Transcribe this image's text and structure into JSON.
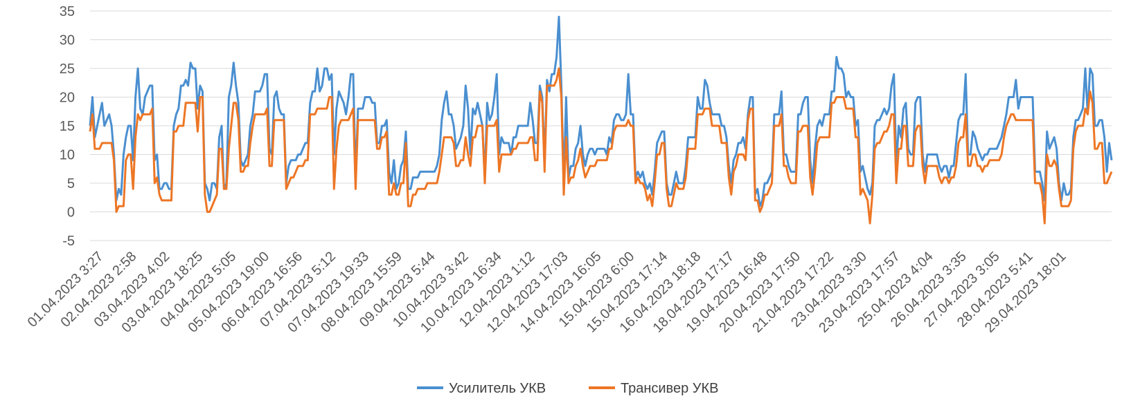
{
  "chart_data": {
    "type": "line",
    "title": "",
    "xlabel": "",
    "ylabel": "",
    "ylim": [
      -5,
      35
    ],
    "yticks": [
      -5,
      0,
      5,
      10,
      15,
      20,
      25,
      30,
      35
    ],
    "grid": true,
    "legend_position": "bottom",
    "x_tick_labels": [
      "01.04.2023 3:27",
      "02.04.2023 2:58",
      "03.04.2023 4:02",
      "03.04.2023 18:25",
      "04.04.2023 5:05",
      "05.04.2023 19:00",
      "06.04.2023 16:56",
      "07.04.2023 5:12",
      "07.04.2023 19:33",
      "08.04.2023 15:59",
      "09.04.2023 5:44",
      "10.04.2023 3:42",
      "10.04.2023 16:34",
      "12.04.2023 1:12",
      "12.04.2023 17:03",
      "14.04.2023 16:05",
      "15.04.2023 6:00",
      "15.04.2023 17:14",
      "16.04.2023 18:18",
      "18.04.2023 17:17",
      "19.04.2023 16:48",
      "20.04.2023 17:50",
      "21.04.2023 17:22",
      "23.04.2023 3:30",
      "23.04.2023 17:57",
      "25.04.2023 4:04",
      "26.04.2023 3:35",
      "27.04.2023 3:05",
      "28.04.2023 5:41",
      "29.04.2023 18:01"
    ],
    "series": [
      {
        "name": "Усилитель УКВ",
        "color": "#4a8fd0",
        "values": [
          15,
          20,
          13,
          15,
          17,
          19,
          15,
          16,
          17,
          15,
          10,
          2,
          4,
          3,
          10,
          13,
          15,
          15,
          9,
          20,
          25,
          18,
          17,
          20,
          21,
          22,
          22,
          9,
          10,
          4,
          4,
          5,
          5,
          4,
          4,
          15,
          17,
          18,
          22,
          22,
          23,
          22,
          26,
          25,
          25,
          18,
          22,
          21,
          5,
          4,
          2,
          5,
          5,
          4,
          13,
          15,
          4,
          5,
          20,
          22,
          26,
          22,
          19,
          9,
          8,
          9,
          10,
          15,
          17,
          21,
          21,
          21,
          22,
          24,
          24,
          11,
          10,
          20,
          21,
          18,
          17,
          17,
          5,
          8,
          9,
          9,
          9,
          10,
          10,
          11,
          12,
          12,
          19,
          21,
          21,
          25,
          21,
          22,
          25,
          25,
          23,
          24,
          10,
          18,
          21,
          20,
          19,
          17,
          20,
          24,
          24,
          6,
          18,
          18,
          18,
          20,
          20,
          20,
          19,
          19,
          12,
          12,
          15,
          15,
          16,
          7,
          5,
          9,
          4,
          5,
          8,
          9,
          14,
          4,
          4,
          6,
          6,
          6,
          7,
          7,
          7,
          7,
          7,
          7,
          7,
          8,
          10,
          16,
          19,
          21,
          17,
          17,
          15,
          11,
          12,
          13,
          15,
          22,
          18,
          10,
          18,
          17,
          19,
          17,
          15,
          6,
          19,
          16,
          17,
          20,
          24,
          10,
          13,
          12,
          12,
          12,
          10,
          13,
          13,
          15,
          15,
          15,
          15,
          15,
          19,
          16,
          12,
          12,
          22,
          20,
          9,
          23,
          21,
          24,
          24,
          27,
          34,
          22,
          5,
          20,
          6,
          8,
          8,
          11,
          12,
          15,
          10,
          8,
          10,
          11,
          11,
          10,
          11,
          11,
          11,
          11,
          10,
          13,
          12,
          16,
          17,
          17,
          16,
          16,
          17,
          24,
          17,
          17,
          6,
          7,
          6,
          7,
          5,
          4,
          5,
          3,
          7,
          12,
          13,
          14,
          14,
          5,
          3,
          3,
          5,
          7,
          5,
          5,
          5,
          8,
          13,
          13,
          13,
          13,
          20,
          18,
          18,
          23,
          22,
          19,
          17,
          17,
          17,
          17,
          15,
          15,
          13,
          8,
          5,
          9,
          10,
          12,
          12,
          13,
          11,
          17,
          20,
          20,
          3,
          4,
          1,
          2,
          5,
          5,
          6,
          7,
          17,
          17,
          17,
          21,
          10,
          10,
          8,
          7,
          7,
          7,
          17,
          17,
          19,
          20,
          20,
          9,
          5,
          11,
          15,
          16,
          15,
          17,
          17,
          17,
          21,
          21,
          27,
          25,
          25,
          24,
          20,
          21,
          20,
          20,
          15,
          16,
          7,
          8,
          6,
          4,
          3,
          5,
          15,
          16,
          16,
          17,
          18,
          17,
          18,
          22,
          24,
          8,
          15,
          13,
          18,
          19,
          11,
          10,
          10,
          19,
          20,
          20,
          10,
          7,
          10,
          10,
          10,
          10,
          10,
          8,
          7,
          8,
          8,
          6,
          8,
          8,
          12,
          16,
          17,
          17,
          24,
          10,
          10,
          14,
          13,
          11,
          10,
          9,
          10,
          10,
          11,
          11,
          11,
          11,
          12,
          13,
          15,
          17,
          20,
          20,
          20,
          23,
          18,
          20,
          20,
          20,
          20,
          20,
          20,
          7,
          7,
          7,
          5,
          2,
          14,
          11,
          12,
          13,
          11,
          5,
          2,
          5,
          3,
          3,
          4,
          13,
          16,
          16,
          17,
          18,
          25,
          17,
          25,
          24,
          15,
          15,
          16,
          16,
          13,
          7,
          12,
          9
        ]
      },
      {
        "name": "Трансивер УКВ",
        "color": "#ed7625",
        "values": [
          14,
          17,
          11,
          11,
          11,
          12,
          12,
          12,
          12,
          12,
          9,
          0,
          1,
          1,
          1,
          9,
          10,
          10,
          4,
          13,
          17,
          16,
          17,
          17,
          17,
          17,
          18,
          5,
          6,
          3,
          2,
          2,
          2,
          2,
          2,
          14,
          14,
          15,
          15,
          15,
          19,
          19,
          19,
          19,
          19,
          14,
          20,
          20,
          3,
          0,
          0,
          1,
          2,
          3,
          11,
          11,
          4,
          4,
          11,
          15,
          19,
          19,
          16,
          7,
          7,
          8,
          8,
          12,
          15,
          17,
          17,
          17,
          17,
          17,
          18,
          8,
          8,
          16,
          16,
          16,
          16,
          16,
          4,
          5,
          6,
          6,
          7,
          8,
          8,
          8,
          9,
          9,
          17,
          17,
          17,
          18,
          18,
          18,
          18,
          18,
          20,
          20,
          4,
          11,
          15,
          16,
          16,
          16,
          16,
          17,
          18,
          4,
          16,
          16,
          16,
          16,
          16,
          16,
          16,
          16,
          11,
          11,
          13,
          13,
          14,
          3,
          3,
          5,
          3,
          3,
          5,
          5,
          12,
          1,
          1,
          3,
          3,
          4,
          4,
          4,
          4,
          5,
          5,
          5,
          5,
          5,
          7,
          10,
          13,
          13,
          13,
          13,
          12,
          8,
          8,
          9,
          9,
          13,
          10,
          8,
          13,
          13,
          15,
          15,
          15,
          5,
          15,
          15,
          15,
          15,
          16,
          7,
          10,
          10,
          10,
          10,
          10,
          11,
          11,
          12,
          12,
          12,
          12,
          12,
          13,
          13,
          9,
          9,
          21,
          19,
          7,
          22,
          22,
          22,
          22,
          23,
          25,
          20,
          3,
          13,
          5,
          6,
          6,
          8,
          9,
          11,
          8,
          6,
          7,
          8,
          8,
          8,
          9,
          9,
          9,
          9,
          9,
          11,
          11,
          14,
          15,
          15,
          15,
          15,
          15,
          16,
          15,
          15,
          5,
          6,
          5,
          5,
          4,
          2,
          3,
          1,
          5,
          10,
          10,
          12,
          12,
          4,
          1,
          1,
          3,
          5,
          4,
          4,
          4,
          6,
          11,
          11,
          11,
          11,
          17,
          17,
          17,
          18,
          18,
          18,
          15,
          15,
          15,
          15,
          12,
          12,
          12,
          6,
          3,
          7,
          8,
          10,
          10,
          10,
          9,
          16,
          18,
          18,
          2,
          2,
          0,
          1,
          3,
          3,
          4,
          5,
          15,
          15,
          15,
          17,
          8,
          8,
          6,
          5,
          5,
          5,
          14,
          14,
          15,
          15,
          15,
          6,
          3,
          7,
          12,
          13,
          13,
          13,
          13,
          13,
          19,
          19,
          20,
          20,
          20,
          20,
          18,
          18,
          18,
          18,
          13,
          13,
          3,
          4,
          3,
          2,
          -2,
          3,
          11,
          12,
          12,
          13,
          14,
          14,
          15,
          17,
          17,
          5,
          11,
          11,
          15,
          15,
          8,
          8,
          8,
          14,
          15,
          15,
          8,
          5,
          8,
          8,
          8,
          8,
          8,
          6,
          5,
          6,
          6,
          5,
          6,
          6,
          8,
          12,
          13,
          13,
          17,
          8,
          8,
          10,
          10,
          8,
          8,
          7,
          8,
          8,
          9,
          9,
          9,
          9,
          9,
          10,
          13,
          15,
          16,
          17,
          17,
          16,
          16,
          16,
          16,
          16,
          16,
          16,
          16,
          5,
          5,
          5,
          3,
          -2,
          10,
          8,
          8,
          9,
          8,
          4,
          1,
          1,
          1,
          1,
          2,
          11,
          14,
          15,
          15,
          15,
          18,
          17,
          21,
          19,
          11,
          11,
          12,
          12,
          5,
          5,
          6,
          7
        ]
      }
    ]
  }
}
